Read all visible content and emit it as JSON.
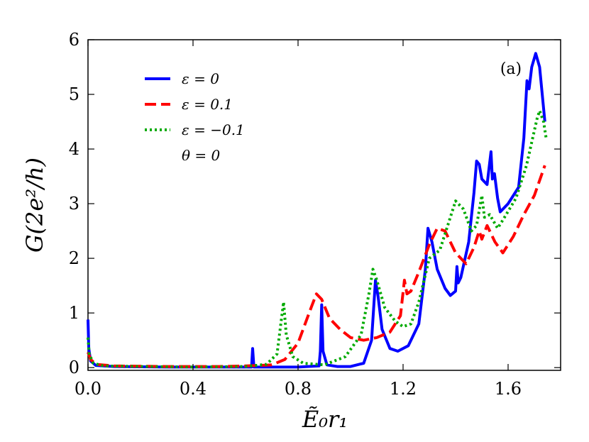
{
  "chart_data": {
    "type": "line",
    "panel_label": "(a)",
    "xlabel": "Ẽ₀r₁",
    "ylabel": "G(2e²/h)",
    "xlim": [
      0,
      1.8
    ],
    "ylim": [
      -0.05,
      6
    ],
    "x_ticks": [
      0.0,
      0.4,
      0.8,
      1.2,
      1.6
    ],
    "x_tick_labels": [
      "0.0",
      "0.4",
      "0.8",
      "1.2",
      "1.6"
    ],
    "y_ticks": [
      0,
      1,
      2,
      3,
      4,
      5,
      6
    ],
    "y_tick_labels": [
      "0",
      "1",
      "2",
      "3",
      "4",
      "5",
      "6"
    ],
    "grid": false,
    "legend_position": "top-left",
    "legend_note": "θ = 0",
    "series": [
      {
        "name": "ε = 0",
        "color": "#0000ff",
        "dash": "solid",
        "points": [
          [
            0.0,
            0.88
          ],
          [
            0.003,
            0.35
          ],
          [
            0.01,
            0.12
          ],
          [
            0.03,
            0.04
          ],
          [
            0.1,
            0.02
          ],
          [
            0.3,
            0.01
          ],
          [
            0.6,
            0.01
          ],
          [
            0.623,
            0.01
          ],
          [
            0.627,
            0.35
          ],
          [
            0.632,
            0.01
          ],
          [
            0.8,
            0.01
          ],
          [
            0.88,
            0.03
          ],
          [
            0.885,
            0.3
          ],
          [
            0.89,
            1.15
          ],
          [
            0.895,
            0.3
          ],
          [
            0.91,
            0.05
          ],
          [
            0.95,
            0.02
          ],
          [
            1.0,
            0.02
          ],
          [
            1.05,
            0.08
          ],
          [
            1.08,
            0.5
          ],
          [
            1.095,
            1.6
          ],
          [
            1.105,
            1.3
          ],
          [
            1.12,
            0.7
          ],
          [
            1.15,
            0.35
          ],
          [
            1.18,
            0.3
          ],
          [
            1.22,
            0.4
          ],
          [
            1.26,
            0.8
          ],
          [
            1.285,
            1.8
          ],
          [
            1.295,
            2.55
          ],
          [
            1.31,
            2.3
          ],
          [
            1.33,
            1.8
          ],
          [
            1.36,
            1.45
          ],
          [
            1.38,
            1.32
          ],
          [
            1.4,
            1.4
          ],
          [
            1.405,
            1.85
          ],
          [
            1.41,
            1.55
          ],
          [
            1.42,
            1.65
          ],
          [
            1.45,
            2.3
          ],
          [
            1.47,
            3.2
          ],
          [
            1.48,
            3.78
          ],
          [
            1.49,
            3.72
          ],
          [
            1.5,
            3.45
          ],
          [
            1.52,
            3.35
          ],
          [
            1.535,
            3.95
          ],
          [
            1.54,
            3.45
          ],
          [
            1.548,
            3.55
          ],
          [
            1.56,
            3.1
          ],
          [
            1.57,
            2.85
          ],
          [
            1.6,
            3.0
          ],
          [
            1.64,
            3.3
          ],
          [
            1.66,
            4.2
          ],
          [
            1.672,
            5.25
          ],
          [
            1.68,
            5.1
          ],
          [
            1.69,
            5.5
          ],
          [
            1.705,
            5.75
          ],
          [
            1.72,
            5.5
          ],
          [
            1.74,
            4.5
          ]
        ]
      },
      {
        "name": "ε = 0.1",
        "color": "#ff0000",
        "dash": "dashed",
        "points": [
          [
            0.0,
            0.28
          ],
          [
            0.01,
            0.15
          ],
          [
            0.03,
            0.06
          ],
          [
            0.1,
            0.03
          ],
          [
            0.3,
            0.02
          ],
          [
            0.5,
            0.02
          ],
          [
            0.6,
            0.03
          ],
          [
            0.7,
            0.05
          ],
          [
            0.75,
            0.15
          ],
          [
            0.8,
            0.45
          ],
          [
            0.85,
            1.1
          ],
          [
            0.87,
            1.35
          ],
          [
            0.89,
            1.25
          ],
          [
            0.92,
            0.9
          ],
          [
            0.96,
            0.7
          ],
          [
            1.0,
            0.55
          ],
          [
            1.05,
            0.5
          ],
          [
            1.1,
            0.55
          ],
          [
            1.15,
            0.65
          ],
          [
            1.19,
            0.95
          ],
          [
            1.205,
            1.6
          ],
          [
            1.215,
            1.35
          ],
          [
            1.23,
            1.4
          ],
          [
            1.26,
            1.75
          ],
          [
            1.3,
            2.25
          ],
          [
            1.33,
            2.55
          ],
          [
            1.36,
            2.5
          ],
          [
            1.4,
            2.1
          ],
          [
            1.44,
            1.9
          ],
          [
            1.47,
            2.2
          ],
          [
            1.49,
            2.5
          ],
          [
            1.5,
            2.35
          ],
          [
            1.52,
            2.6
          ],
          [
            1.55,
            2.3
          ],
          [
            1.58,
            2.1
          ],
          [
            1.62,
            2.4
          ],
          [
            1.66,
            2.8
          ],
          [
            1.7,
            3.15
          ],
          [
            1.74,
            3.7
          ]
        ]
      },
      {
        "name": "ε = −0.1",
        "color": "#00aa00",
        "dash": "dotted",
        "points": [
          [
            0.0,
            0.55
          ],
          [
            0.005,
            0.25
          ],
          [
            0.02,
            0.08
          ],
          [
            0.06,
            0.03
          ],
          [
            0.2,
            0.02
          ],
          [
            0.4,
            0.01
          ],
          [
            0.6,
            0.02
          ],
          [
            0.68,
            0.06
          ],
          [
            0.72,
            0.25
          ],
          [
            0.745,
            1.2
          ],
          [
            0.755,
            0.6
          ],
          [
            0.78,
            0.2
          ],
          [
            0.82,
            0.08
          ],
          [
            0.9,
            0.05
          ],
          [
            0.98,
            0.2
          ],
          [
            1.04,
            0.6
          ],
          [
            1.07,
            1.35
          ],
          [
            1.085,
            1.8
          ],
          [
            1.1,
            1.6
          ],
          [
            1.13,
            1.1
          ],
          [
            1.17,
            0.85
          ],
          [
            1.2,
            0.75
          ],
          [
            1.23,
            0.8
          ],
          [
            1.26,
            1.2
          ],
          [
            1.3,
            2.0
          ],
          [
            1.34,
            2.15
          ],
          [
            1.37,
            2.6
          ],
          [
            1.4,
            3.05
          ],
          [
            1.43,
            2.9
          ],
          [
            1.46,
            2.5
          ],
          [
            1.48,
            2.6
          ],
          [
            1.5,
            3.15
          ],
          [
            1.51,
            2.75
          ],
          [
            1.53,
            2.8
          ],
          [
            1.56,
            2.55
          ],
          [
            1.58,
            2.7
          ],
          [
            1.63,
            3.1
          ],
          [
            1.67,
            3.7
          ],
          [
            1.71,
            4.55
          ],
          [
            1.72,
            4.7
          ],
          [
            1.735,
            4.5
          ],
          [
            1.745,
            4.2
          ]
        ]
      }
    ]
  }
}
